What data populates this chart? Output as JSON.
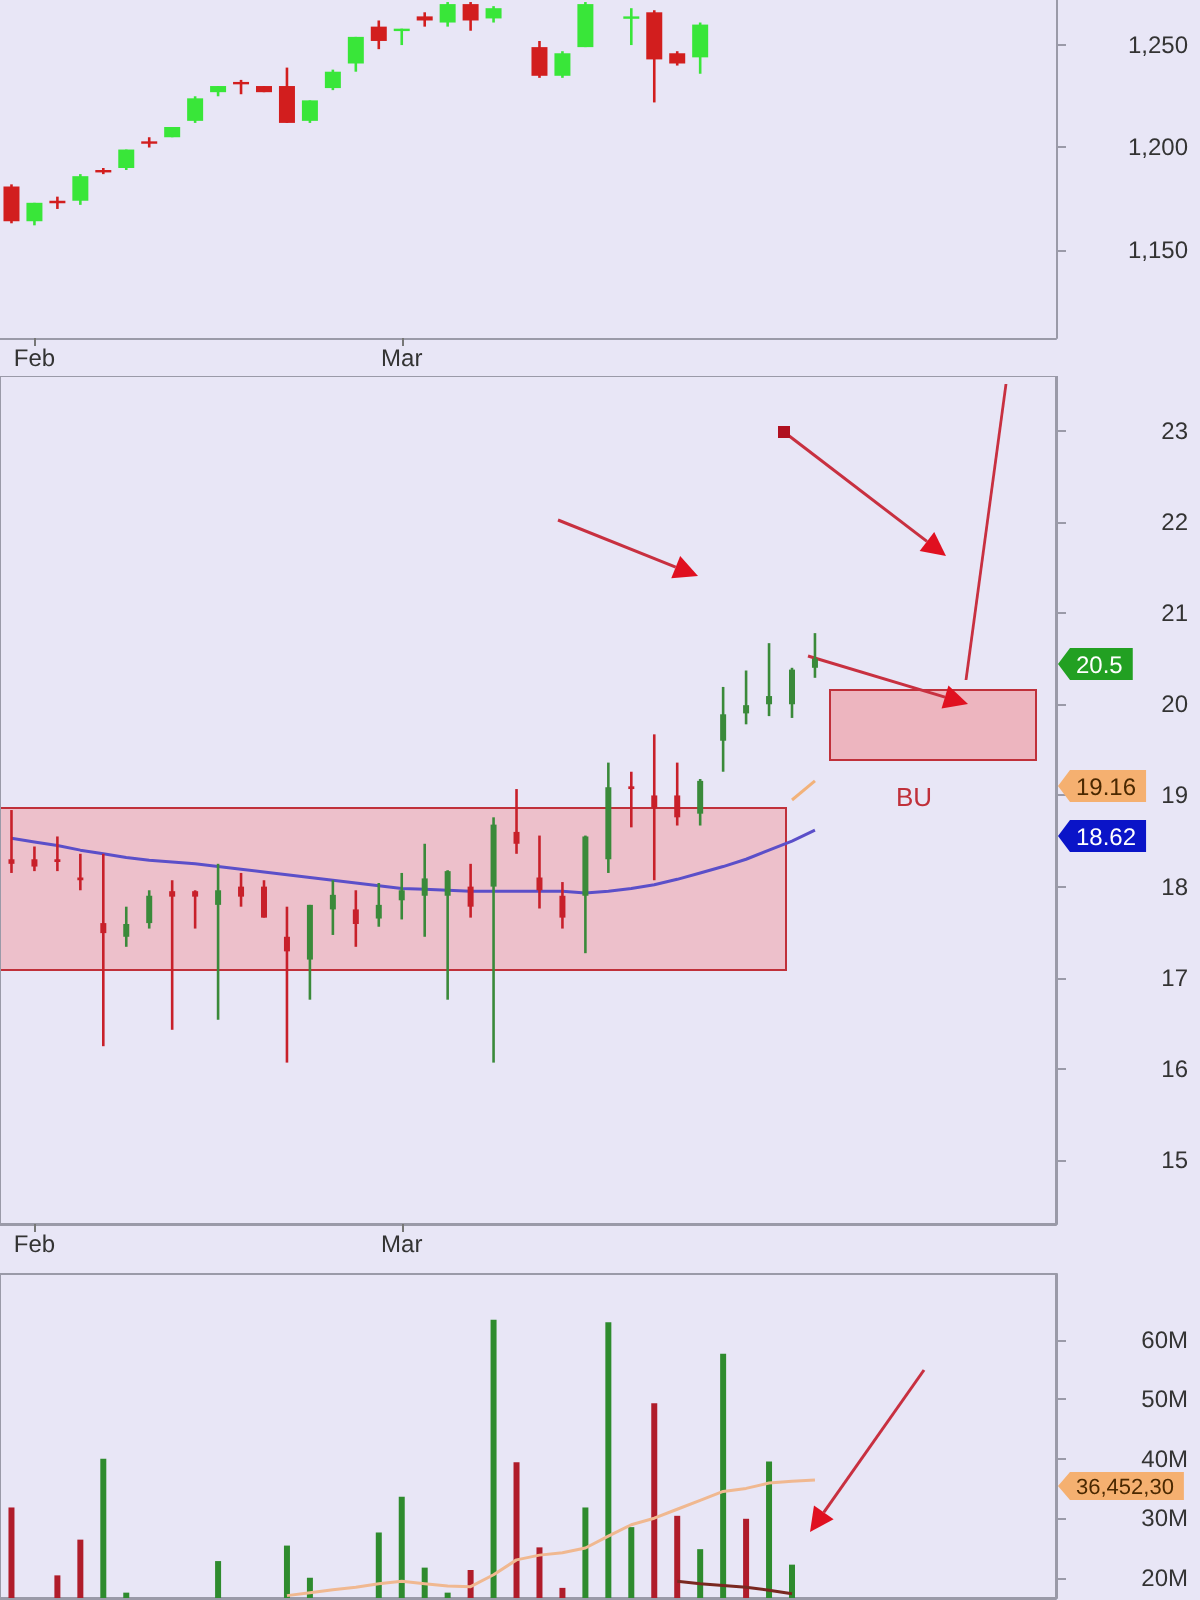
{
  "chart_data": [
    {
      "type": "candlestick",
      "categories": [
        null,
        "Feb",
        null,
        null,
        null,
        null,
        null,
        null,
        null,
        null,
        null,
        null,
        null,
        null,
        null,
        null,
        null,
        "Mar",
        null,
        null,
        null,
        null,
        null,
        null,
        null,
        null,
        null,
        null,
        null,
        null,
        null,
        null,
        null,
        null,
        null,
        null,
        null,
        null,
        null,
        null,
        null,
        null,
        null,
        null,
        null,
        null
      ],
      "ohlc": [
        [
          1181,
          1182,
          1163,
          1164
        ],
        [
          1164,
          1173,
          1162,
          1173
        ],
        [
          1174,
          1176,
          1170,
          1173
        ],
        [
          1174,
          1187,
          1172,
          1186
        ],
        [
          1189,
          1190,
          1187,
          1188
        ],
        [
          1190,
          1199,
          1189,
          1199
        ],
        [
          1203,
          1205,
          1200,
          1202
        ],
        [
          1205,
          1210,
          1205,
          1210
        ],
        [
          1213,
          1225,
          1212,
          1224
        ],
        [
          1227,
          1230,
          1225,
          1230
        ],
        [
          1232,
          1233,
          1226,
          1231
        ],
        [
          1230,
          1230,
          1227,
          1227
        ],
        [
          1230,
          1239,
          1212,
          1212
        ],
        [
          1213,
          1223,
          1212,
          1223
        ],
        [
          1229,
          1238,
          1228,
          1237
        ],
        [
          1241,
          1254,
          1237,
          1254
        ],
        [
          1259,
          1262,
          1248,
          1252
        ],
        [
          1257,
          1258,
          1250,
          1258
        ],
        [
          1264,
          1266,
          1259,
          1262
        ],
        [
          1261,
          1271,
          1259,
          1270
        ],
        [
          1270,
          1271,
          1257,
          1262
        ],
        [
          1263,
          1269,
          1261,
          1268
        ],
        null,
        [
          1249,
          1252,
          1234,
          1235
        ],
        [
          1235,
          1247,
          1234,
          1246
        ],
        [
          1249,
          1271,
          1249,
          1270
        ],
        null,
        [
          1263,
          1268,
          1250,
          1264
        ],
        [
          1266,
          1267,
          1222,
          1243
        ],
        [
          1246,
          1247,
          1240,
          1241
        ],
        [
          1244,
          1261,
          1236,
          1260
        ],
        null,
        null,
        null,
        null,
        null,
        null,
        null,
        null,
        null,
        null,
        null,
        null,
        null,
        null,
        null
      ],
      "colors": [
        "#d21e1e",
        "#39e639",
        "#d21e1e",
        "#39e639",
        "#d21e1e",
        "#39e639",
        "#d21e1e",
        "#39e639",
        "#39e639",
        "#39e639",
        "#d21e1e",
        "#d21e1e",
        "#d21e1e",
        "#39e639",
        "#39e639",
        "#39e639",
        "#d21e1e",
        "#39e639",
        "#d21e1e",
        "#39e639",
        "#d21e1e",
        "#39e639",
        null,
        "#d21e1e",
        "#39e639",
        "#39e639",
        null,
        "#39e639",
        "#d21e1e",
        "#d21e1e",
        "#39e639",
        null,
        null,
        null,
        null,
        null,
        null,
        null,
        null,
        null,
        null,
        null,
        null,
        null,
        null,
        null
      ],
      "ylim": [
        1107,
        1272
      ],
      "yticks": [
        {
          "value": 1150,
          "label": "1,150"
        },
        {
          "value": 1200,
          "label": "1,200"
        },
        {
          "value": 1250,
          "label": "1,250"
        }
      ]
    },
    {
      "type": "candlestick",
      "categories": [
        null,
        "Feb",
        null,
        null,
        null,
        null,
        null,
        null,
        null,
        null,
        null,
        null,
        null,
        null,
        null,
        null,
        null,
        "Mar",
        null,
        null,
        null,
        null,
        null,
        null,
        null,
        null,
        null,
        null,
        null,
        null,
        null,
        null,
        null,
        null,
        null,
        null,
        null,
        null,
        null,
        null,
        null,
        null,
        null,
        null,
        null,
        null
      ],
      "ohlc": [
        [
          18.3,
          18.84,
          18.15,
          18.25
        ],
        [
          18.3,
          18.44,
          18.17,
          18.22
        ],
        [
          18.3,
          18.55,
          18.17,
          18.27
        ],
        [
          18.1,
          18.36,
          17.96,
          18.07
        ],
        [
          17.6,
          18.36,
          16.25,
          17.49
        ],
        [
          17.45,
          17.78,
          17.34,
          17.59
        ],
        [
          17.6,
          17.96,
          17.54,
          17.9
        ],
        [
          17.95,
          18.07,
          16.43,
          17.89
        ],
        [
          17.95,
          17.96,
          17.54,
          17.89
        ],
        [
          17.8,
          18.25,
          16.54,
          17.96
        ],
        [
          18.0,
          18.15,
          17.78,
          17.89
        ],
        [
          18.0,
          18.07,
          17.66,
          17.66
        ],
        [
          17.45,
          17.78,
          16.07,
          17.29
        ],
        [
          17.2,
          17.8,
          16.76,
          17.8
        ],
        [
          17.75,
          18.07,
          17.47,
          17.91
        ],
        [
          17.75,
          17.96,
          17.34,
          17.59
        ],
        [
          17.65,
          18.04,
          17.56,
          17.8
        ],
        [
          17.85,
          18.15,
          17.64,
          17.96
        ],
        [
          17.9,
          18.47,
          17.45,
          18.09
        ],
        [
          17.9,
          18.18,
          16.76,
          18.17
        ],
        [
          18.0,
          18.25,
          17.66,
          17.78
        ],
        [
          18.0,
          18.76,
          16.07,
          18.68
        ],
        [
          18.6,
          19.07,
          18.36,
          18.47
        ],
        [
          18.1,
          18.56,
          17.76,
          17.96
        ],
        [
          17.9,
          18.05,
          17.54,
          17.66
        ],
        [
          17.9,
          18.56,
          17.27,
          18.55
        ],
        [
          18.3,
          19.36,
          18.15,
          19.09
        ],
        [
          19.1,
          19.26,
          18.65,
          19.07
        ],
        [
          19.0,
          19.67,
          18.07,
          18.87
        ],
        [
          19.0,
          19.36,
          18.67,
          18.76
        ],
        [
          18.8,
          19.18,
          18.67,
          19.16
        ],
        [
          19.6,
          20.19,
          19.26,
          19.89
        ],
        [
          19.9,
          20.37,
          19.78,
          19.99
        ],
        [
          20.0,
          20.67,
          19.87,
          20.09
        ],
        [
          20.0,
          20.4,
          19.85,
          20.38
        ],
        [
          20.4,
          20.78,
          20.29,
          20.5
        ],
        null,
        null,
        null,
        null,
        null,
        null,
        null,
        null,
        null,
        null
      ],
      "colors": [
        "#c8202a",
        "#c8202a",
        "#c8202a",
        "#c8202a",
        "#c8202a",
        "#3a8a3a",
        "#3a8a3a",
        "#c8202a",
        "#c8202a",
        "#3a8a3a",
        "#c8202a",
        "#c8202a",
        "#c8202a",
        "#3a8a3a",
        "#3a8a3a",
        "#c8202a",
        "#3a8a3a",
        "#3a8a3a",
        "#3a8a3a",
        "#3a8a3a",
        "#c8202a",
        "#3a8a3a",
        "#c8202a",
        "#c8202a",
        "#c8202a",
        "#3a8a3a",
        "#3a8a3a",
        "#c8202a",
        "#c8202a",
        "#c8202a",
        "#3a8a3a",
        "#3a8a3a",
        "#3a8a3a",
        "#3a8a3a",
        "#3a8a3a",
        "#3a8a3a",
        null,
        null,
        null,
        null,
        null,
        null,
        null,
        null,
        null,
        null
      ],
      "series": [
        {
          "type": "line",
          "color": "#5b4fc9",
          "values": [
            18.53,
            18.49,
            18.45,
            18.4,
            18.36,
            18.32,
            18.29,
            18.27,
            18.25,
            18.22,
            18.19,
            18.16,
            18.13,
            18.1,
            18.07,
            18.04,
            18.01,
            17.98,
            17.97,
            17.96,
            17.95,
            17.95,
            17.95,
            17.95,
            17.95,
            17.93,
            17.95,
            17.98,
            18.02,
            18.08,
            18.15,
            18.22,
            18.3,
            18.4,
            18.5,
            18.62,
            null,
            null,
            null,
            null,
            null,
            null,
            null,
            null,
            null,
            null
          ]
        },
        {
          "type": "line",
          "color": "#f2b27a",
          "values": [
            null,
            null,
            null,
            null,
            null,
            null,
            null,
            null,
            null,
            null,
            null,
            null,
            null,
            null,
            null,
            null,
            null,
            null,
            null,
            null,
            null,
            null,
            null,
            null,
            null,
            null,
            null,
            null,
            null,
            null,
            null,
            null,
            null,
            null,
            18.95,
            19.16,
            null,
            null,
            null,
            null,
            null,
            null,
            null,
            null,
            null,
            null
          ]
        }
      ],
      "ylim": [
        14.3,
        23.6
      ],
      "yticks": [
        15,
        16,
        17,
        18,
        19,
        20,
        21,
        22,
        23
      ],
      "annotations": [
        "BU",
        "20.5",
        "19.16",
        "18.62"
      ]
    },
    {
      "type": "bar",
      "categories": [
        null,
        null,
        null,
        null,
        null,
        null,
        null,
        null,
        null,
        null,
        null,
        null,
        null,
        null,
        null,
        null,
        null,
        null,
        null,
        null,
        null,
        null,
        null,
        null,
        null,
        null,
        null,
        null,
        null,
        null,
        null,
        null,
        null,
        null,
        null,
        null,
        null,
        null,
        null,
        null,
        null,
        null,
        null,
        null,
        null,
        null
      ],
      "series": [
        {
          "type": "bar",
          "values": [
            31.8,
            null,
            20.4,
            26.4,
            40.0,
            17.5,
            null,
            null,
            null,
            22.8,
            null,
            null,
            25.4,
            20.0,
            null,
            null,
            27.6,
            33.6,
            21.7,
            17.5,
            21.3,
            63.3,
            39.4,
            25.1,
            18.3,
            31.8,
            62.9,
            28.5,
            49.3,
            30.4,
            24.8,
            57.6,
            29.9,
            39.5,
            22.2,
            null,
            null,
            null,
            null,
            null,
            null,
            null,
            null,
            null,
            null,
            null
          ],
          "colors": [
            "#b01c2a",
            null,
            "#b01c2a",
            "#b01c2a",
            "#2e8b2e",
            "#2e8b2e",
            null,
            null,
            null,
            "#2e8b2e",
            null,
            null,
            "#2e8b2e",
            "#2e8b2e",
            null,
            null,
            "#2e8b2e",
            "#2e8b2e",
            "#2e8b2e",
            "#2e8b2e",
            "#b01c2a",
            "#2e8b2e",
            "#b01c2a",
            "#b01c2a",
            "#b01c2a",
            "#2e8b2e",
            "#2e8b2e",
            "#2e8b2e",
            "#b01c2a",
            "#b01c2a",
            "#2e8b2e",
            "#2e8b2e",
            "#b01c2a",
            "#2e8b2e",
            "#2e8b2e",
            null,
            null,
            null,
            null,
            null,
            null,
            null,
            null,
            null,
            null,
            null
          ]
        },
        {
          "type": "line",
          "color": "#f0b890",
          "values": [
            null,
            null,
            null,
            null,
            null,
            null,
            null,
            null,
            null,
            null,
            null,
            null,
            17.0,
            17.5,
            18.0,
            18.4,
            19.0,
            19.4,
            19.0,
            18.6,
            18.5,
            20.5,
            23.0,
            23.8,
            24.2,
            25.0,
            27.0,
            28.9,
            30.0,
            31.5,
            33.0,
            34.5,
            35.0,
            35.9,
            36.2,
            36.4,
            null,
            null,
            null,
            null,
            null,
            null,
            null,
            null,
            null,
            null
          ]
        },
        {
          "type": "line",
          "color": "#7a2820",
          "values": [
            null,
            null,
            null,
            null,
            null,
            null,
            null,
            null,
            null,
            null,
            null,
            null,
            null,
            null,
            null,
            null,
            null,
            null,
            null,
            null,
            null,
            null,
            null,
            null,
            null,
            null,
            null,
            null,
            null,
            19.4,
            19.0,
            18.7,
            18.4,
            17.9,
            17.3,
            null,
            null,
            null,
            null,
            null,
            null,
            null,
            null,
            null,
            null,
            null
          ]
        }
      ],
      "ylim": [
        16.6,
        71
      ],
      "yticks": [
        {
          "value": 20,
          "label": "20M"
        },
        {
          "value": 30,
          "label": "30M"
        },
        {
          "value": 40,
          "label": "40M"
        },
        {
          "value": 50,
          "label": "50M"
        },
        {
          "value": 60,
          "label": "60M"
        }
      ],
      "tick_labels": "y",
      "annotations": [
        "36,452,30"
      ]
    }
  ]
}
